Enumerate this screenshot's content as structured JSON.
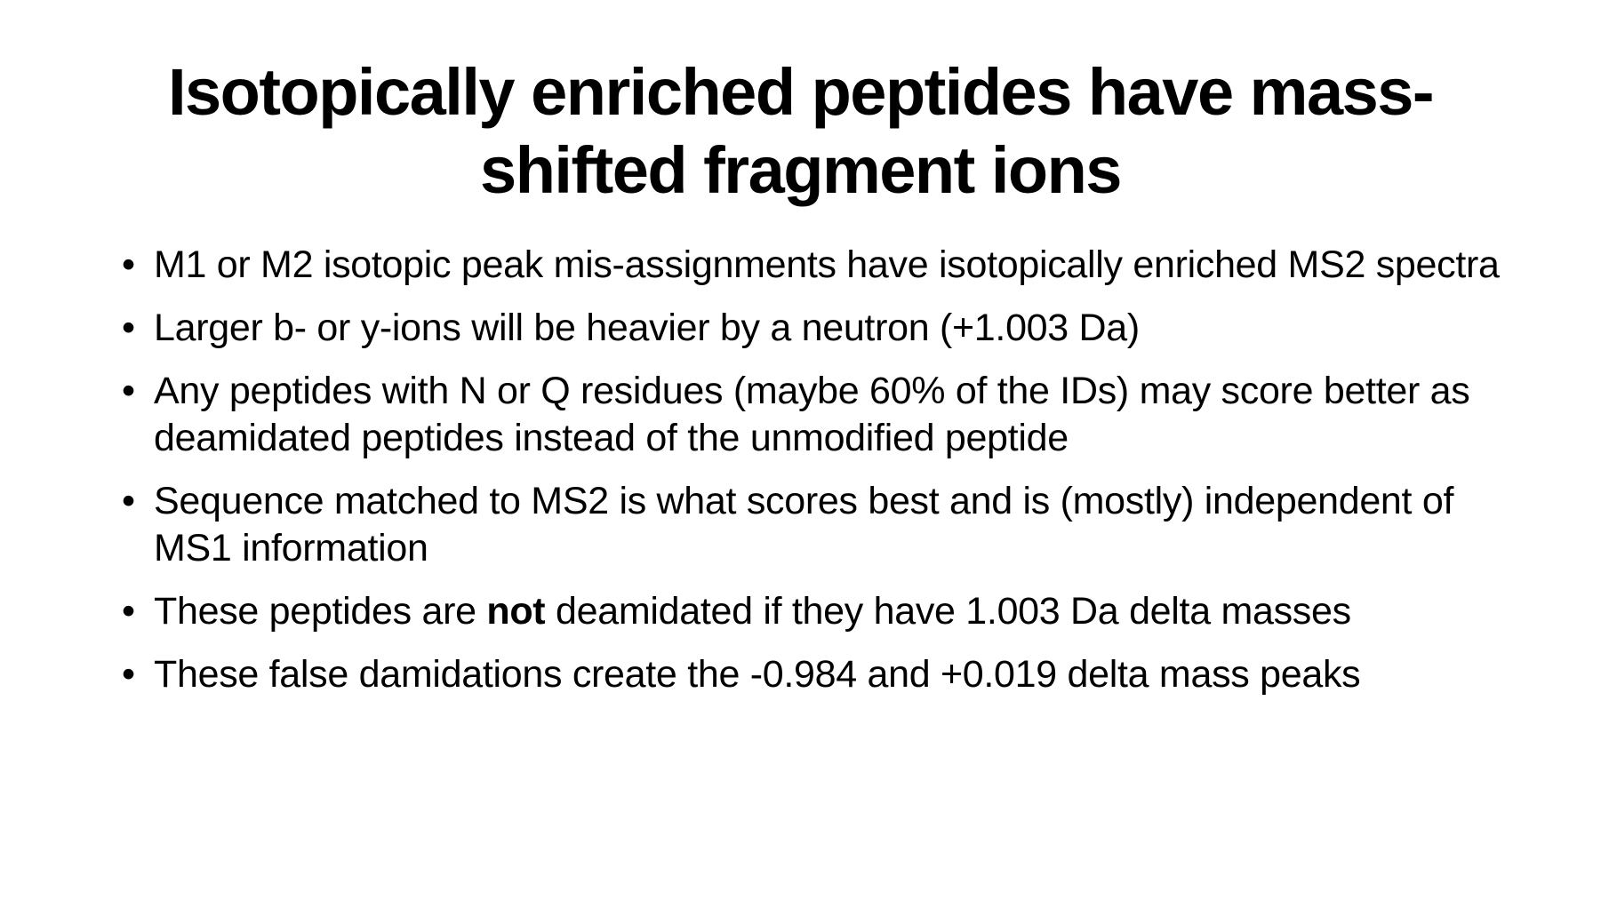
{
  "slide": {
    "title": "Isotopically enriched peptides have mass-shifted fragment ions",
    "bullet_char": "•",
    "bullets": [
      {
        "text": "M1 or M2 isotopic peak mis-assignments have isotopically enriched MS2 spectra"
      },
      {
        "text": "Larger b- or y-ions will be heavier by a neutron (+1.003 Da)"
      },
      {
        "text": "Any peptides with N or Q residues (maybe 60% of the IDs) may score better as deamidated peptides instead of the unmodified peptide"
      },
      {
        "text": "Sequence matched to MS2 is what scores best and is (mostly) independent of MS1 information"
      },
      {
        "prefix": "These peptides are ",
        "bold": "not",
        "suffix": " deamidated if they have 1.003 Da delta masses"
      },
      {
        "text": "These false damidations create the -0.984 and +0.019 delta mass peaks"
      }
    ]
  }
}
